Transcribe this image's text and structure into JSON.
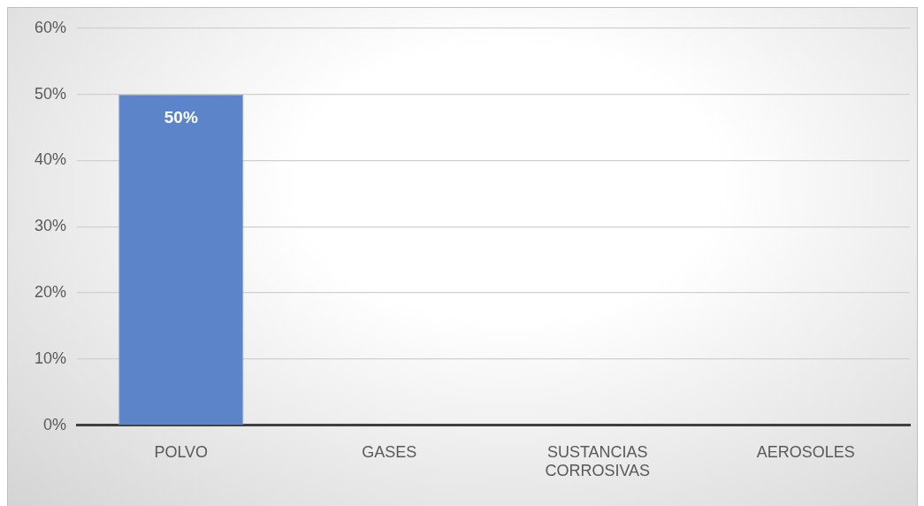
{
  "chart_data": {
    "type": "bar",
    "categories": [
      "POLVO",
      "GASES",
      "SUSTANCIAS CORROSIVAS",
      "AEROSOLES"
    ],
    "values": [
      50,
      0,
      0,
      0
    ],
    "value_labels": [
      "50%",
      null,
      null,
      null
    ],
    "color": "#5b84c9",
    "ylim": [
      0,
      60
    ],
    "yticks": [
      {
        "value": 0,
        "label": "0%"
      },
      {
        "value": 10,
        "label": "10%"
      },
      {
        "value": 20,
        "label": "20%"
      },
      {
        "value": 30,
        "label": "30%"
      },
      {
        "value": 40,
        "label": "40%"
      },
      {
        "value": 50,
        "label": "50%"
      },
      {
        "value": 60,
        "label": "60%"
      }
    ],
    "grid": "y",
    "legend": false
  }
}
